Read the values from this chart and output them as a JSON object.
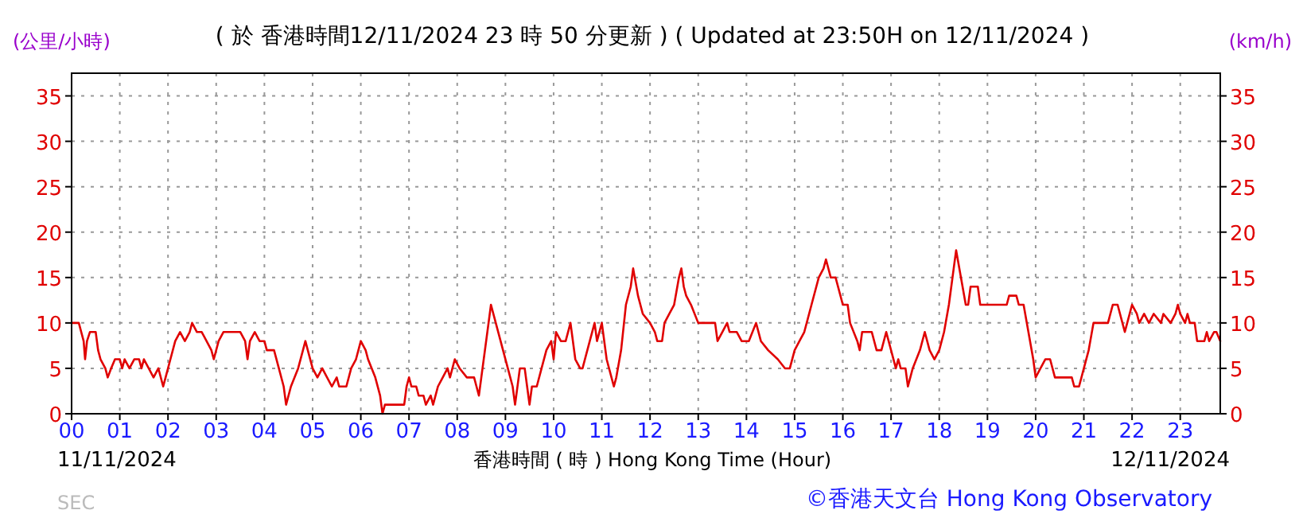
{
  "chart_data": {
    "type": "line",
    "title": "( 於 香港時間12/11/2024 23 時 50 分更新 ) ( Updated at 23:50H on 12/11/2024 )",
    "ylabel": "(公里/小時)",
    "y2label": "(km/h)",
    "xlabel": "香港時間 ( 時 )  Hong Kong Time (Hour)",
    "annotations": [
      "11/11/2024",
      "12/11/2024",
      "©香港天文台 Hong Kong Observatory",
      "SEC"
    ],
    "xlim": [
      0,
      23.83
    ],
    "ylim": [
      0,
      37.5
    ],
    "y2lim": [
      0,
      37.5
    ],
    "xticks": [
      {
        "value": 0,
        "label": "00"
      },
      {
        "value": 1,
        "label": "01"
      },
      {
        "value": 2,
        "label": "02"
      },
      {
        "value": 3,
        "label": "03"
      },
      {
        "value": 4,
        "label": "04"
      },
      {
        "value": 5,
        "label": "05"
      },
      {
        "value": 6,
        "label": "06"
      },
      {
        "value": 7,
        "label": "07"
      },
      {
        "value": 8,
        "label": "08"
      },
      {
        "value": 9,
        "label": "09"
      },
      {
        "value": 10,
        "label": "10"
      },
      {
        "value": 11,
        "label": "11"
      },
      {
        "value": 12,
        "label": "12"
      },
      {
        "value": 13,
        "label": "13"
      },
      {
        "value": 14,
        "label": "14"
      },
      {
        "value": 15,
        "label": "15"
      },
      {
        "value": 16,
        "label": "16"
      },
      {
        "value": 17,
        "label": "17"
      },
      {
        "value": 18,
        "label": "18"
      },
      {
        "value": 19,
        "label": "19"
      },
      {
        "value": 20,
        "label": "20"
      },
      {
        "value": 21,
        "label": "21"
      },
      {
        "value": 22,
        "label": "22"
      },
      {
        "value": 23,
        "label": "23"
      }
    ],
    "yticks": [
      0,
      5,
      10,
      15,
      20,
      25,
      30,
      35
    ],
    "y2ticks": [
      0,
      5,
      10,
      15,
      20,
      25,
      30,
      35
    ],
    "grid": true,
    "series": [
      {
        "color": "#e00000",
        "x": [
          0,
          0.15,
          0.25,
          0.28,
          0.32,
          0.38,
          0.5,
          0.55,
          0.6,
          0.7,
          0.75,
          0.82,
          0.9,
          1.0,
          1.05,
          1.1,
          1.2,
          1.3,
          1.4,
          1.45,
          1.5,
          1.6,
          1.7,
          1.8,
          1.9,
          1.95,
          2.05,
          2.15,
          2.25,
          2.35,
          2.45,
          2.5,
          2.6,
          2.7,
          2.8,
          2.9,
          2.95,
          3.05,
          3.15,
          3.3,
          3.5,
          3.6,
          3.65,
          3.7,
          3.8,
          3.9,
          4.0,
          4.05,
          4.2,
          4.3,
          4.4,
          4.45,
          4.55,
          4.7,
          4.8,
          4.85,
          4.9,
          5.0,
          5.1,
          5.2,
          5.3,
          5.4,
          5.5,
          5.55,
          5.7,
          5.8,
          5.9,
          6.0,
          6.1,
          6.15,
          6.3,
          6.4,
          6.45,
          6.5,
          6.7,
          6.9,
          6.95,
          7.0,
          7.05,
          7.15,
          7.2,
          7.3,
          7.35,
          7.45,
          7.5,
          7.6,
          7.7,
          7.8,
          7.85,
          7.95,
          8.05,
          8.2,
          8.35,
          8.4,
          8.45,
          8.5,
          8.55,
          8.65,
          8.7,
          8.8,
          8.9,
          8.95,
          9.05,
          9.15,
          9.2,
          9.3,
          9.4,
          9.45,
          9.5,
          9.55,
          9.65,
          9.75,
          9.85,
          9.95,
          10.0,
          10.05,
          10.15,
          10.25,
          10.35,
          10.45,
          10.55,
          10.6,
          10.75,
          10.85,
          10.9,
          11.0,
          11.05,
          11.1,
          11.2,
          11.25,
          11.3,
          11.4,
          11.5,
          11.6,
          11.65,
          11.75,
          11.85,
          12.0,
          12.1,
          12.15,
          12.25,
          12.3,
          12.4,
          12.5,
          12.6,
          12.65,
          12.7,
          12.75,
          12.85,
          13.0,
          13.2,
          13.35,
          13.4,
          13.5,
          13.6,
          13.65,
          13.8,
          13.9,
          14.05,
          14.2,
          14.3,
          14.45,
          14.65,
          14.8,
          14.9,
          15.0,
          15.1,
          15.2,
          15.35,
          15.5,
          15.6,
          15.65,
          15.75,
          15.85,
          16.0,
          16.1,
          16.15,
          16.3,
          16.35,
          16.4,
          16.6,
          16.7,
          16.8,
          16.9,
          17.0,
          17.1,
          17.15,
          17.2,
          17.3,
          17.35,
          17.45,
          17.6,
          17.7,
          17.8,
          17.9,
          18.0,
          18.1,
          18.2,
          18.3,
          18.35,
          18.45,
          18.55,
          18.6,
          18.65,
          18.8,
          18.85,
          19.0,
          19.2,
          19.4,
          19.45,
          19.6,
          19.65,
          19.75,
          19.85,
          19.95,
          20.0,
          20.1,
          20.2,
          20.3,
          20.4,
          20.55,
          20.75,
          20.8,
          20.9,
          21.0,
          21.1,
          21.2,
          21.3,
          21.5,
          21.6,
          21.7,
          21.8,
          21.85,
          21.9,
          22.0,
          22.1,
          22.15,
          22.25,
          22.35,
          22.45,
          22.6,
          22.65,
          22.8,
          22.9,
          22.95,
          23.0,
          23.1,
          23.15,
          23.2,
          23.3,
          23.35,
          23.5,
          23.55,
          23.6,
          23.7,
          23.75,
          23.83
        ],
        "values": [
          10,
          10,
          8,
          6,
          8,
          9,
          9,
          7,
          6,
          5,
          4,
          5,
          6,
          6,
          5,
          6,
          5,
          6,
          6,
          5,
          6,
          5,
          4,
          5,
          3,
          4,
          6,
          8,
          9,
          8,
          9,
          10,
          9,
          9,
          8,
          7,
          6,
          8,
          9,
          9,
          9,
          8,
          6,
          8,
          9,
          8,
          8,
          7,
          7,
          5,
          3,
          1,
          3,
          5,
          7,
          8,
          7,
          5,
          4,
          5,
          4,
          3,
          4,
          3,
          3,
          5,
          6,
          8,
          7,
          6,
          4,
          2,
          0,
          1,
          1,
          1,
          3,
          4,
          3,
          3,
          2,
          2,
          1,
          2,
          1,
          3,
          4,
          5,
          4,
          6,
          5,
          4,
          4,
          3,
          2,
          4,
          6,
          10,
          12,
          10,
          8,
          7,
          5,
          3,
          1,
          5,
          5,
          3,
          1,
          3,
          3,
          5,
          7,
          8,
          6,
          9,
          8,
          8,
          10,
          6,
          5,
          5,
          8,
          10,
          8,
          10,
          8,
          6,
          4,
          3,
          4,
          7,
          12,
          14,
          16,
          13,
          11,
          10,
          9,
          8,
          8,
          10,
          11,
          12,
          15,
          16,
          14,
          13,
          12,
          10,
          10,
          10,
          8,
          9,
          10,
          9,
          9,
          8,
          8,
          10,
          8,
          7,
          6,
          5,
          5,
          7,
          8,
          9,
          12,
          15,
          16,
          17,
          15,
          15,
          12,
          12,
          10,
          8,
          7,
          9,
          9,
          7,
          7,
          9,
          7,
          5,
          6,
          5,
          5,
          3,
          5,
          7,
          9,
          7,
          6,
          7,
          9,
          12,
          16,
          18,
          15,
          12,
          12,
          14,
          14,
          12,
          12,
          12,
          12,
          13,
          13,
          12,
          12,
          9,
          6,
          4,
          5,
          6,
          6,
          4,
          4,
          4,
          3,
          3,
          5,
          7,
          10,
          10,
          10,
          12,
          12,
          10,
          9,
          10,
          12,
          11,
          10,
          11,
          10,
          11,
          10,
          11,
          10,
          11,
          12,
          11,
          10,
          11,
          10,
          10,
          8,
          8,
          9,
          8,
          9,
          9,
          8
        ]
      }
    ]
  }
}
